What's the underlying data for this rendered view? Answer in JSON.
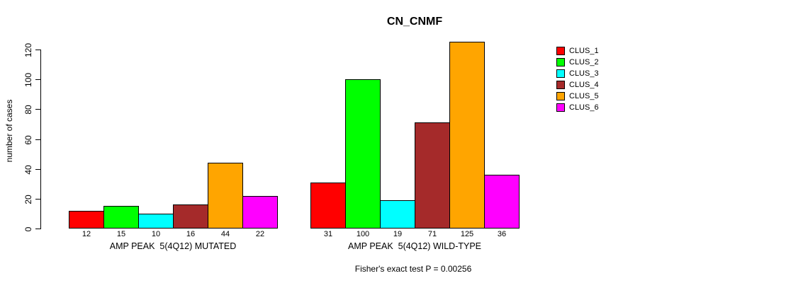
{
  "chart_data": {
    "type": "bar",
    "title": "CN_CNMF",
    "ylabel": "number of cases",
    "xlabel": "",
    "ylim": [
      0,
      120
    ],
    "yticks": [
      0,
      20,
      40,
      60,
      80,
      100,
      120
    ],
    "grid": false,
    "legend_position": "right",
    "legend": [
      {
        "label": "CLUS_1",
        "color": "#FF0000"
      },
      {
        "label": "CLUS_2",
        "color": "#00FF00"
      },
      {
        "label": "CLUS_3",
        "color": "#00FFFF"
      },
      {
        "label": "CLUS_4",
        "color": "#A52A2A"
      },
      {
        "label": "CLUS_5",
        "color": "#FFA500"
      },
      {
        "label": "CLUS_6",
        "color": "#FF00FF"
      }
    ],
    "groups": [
      {
        "label": "AMP PEAK  5(4Q12) MUTATED",
        "values": [
          12,
          15,
          10,
          16,
          44,
          22
        ]
      },
      {
        "label": "AMP PEAK  5(4Q12) WILD-TYPE",
        "values": [
          31,
          100,
          19,
          71,
          125,
          36
        ]
      }
    ],
    "bar_value_labels": true,
    "annotation": "Fisher's exact test P = 0.00256"
  }
}
